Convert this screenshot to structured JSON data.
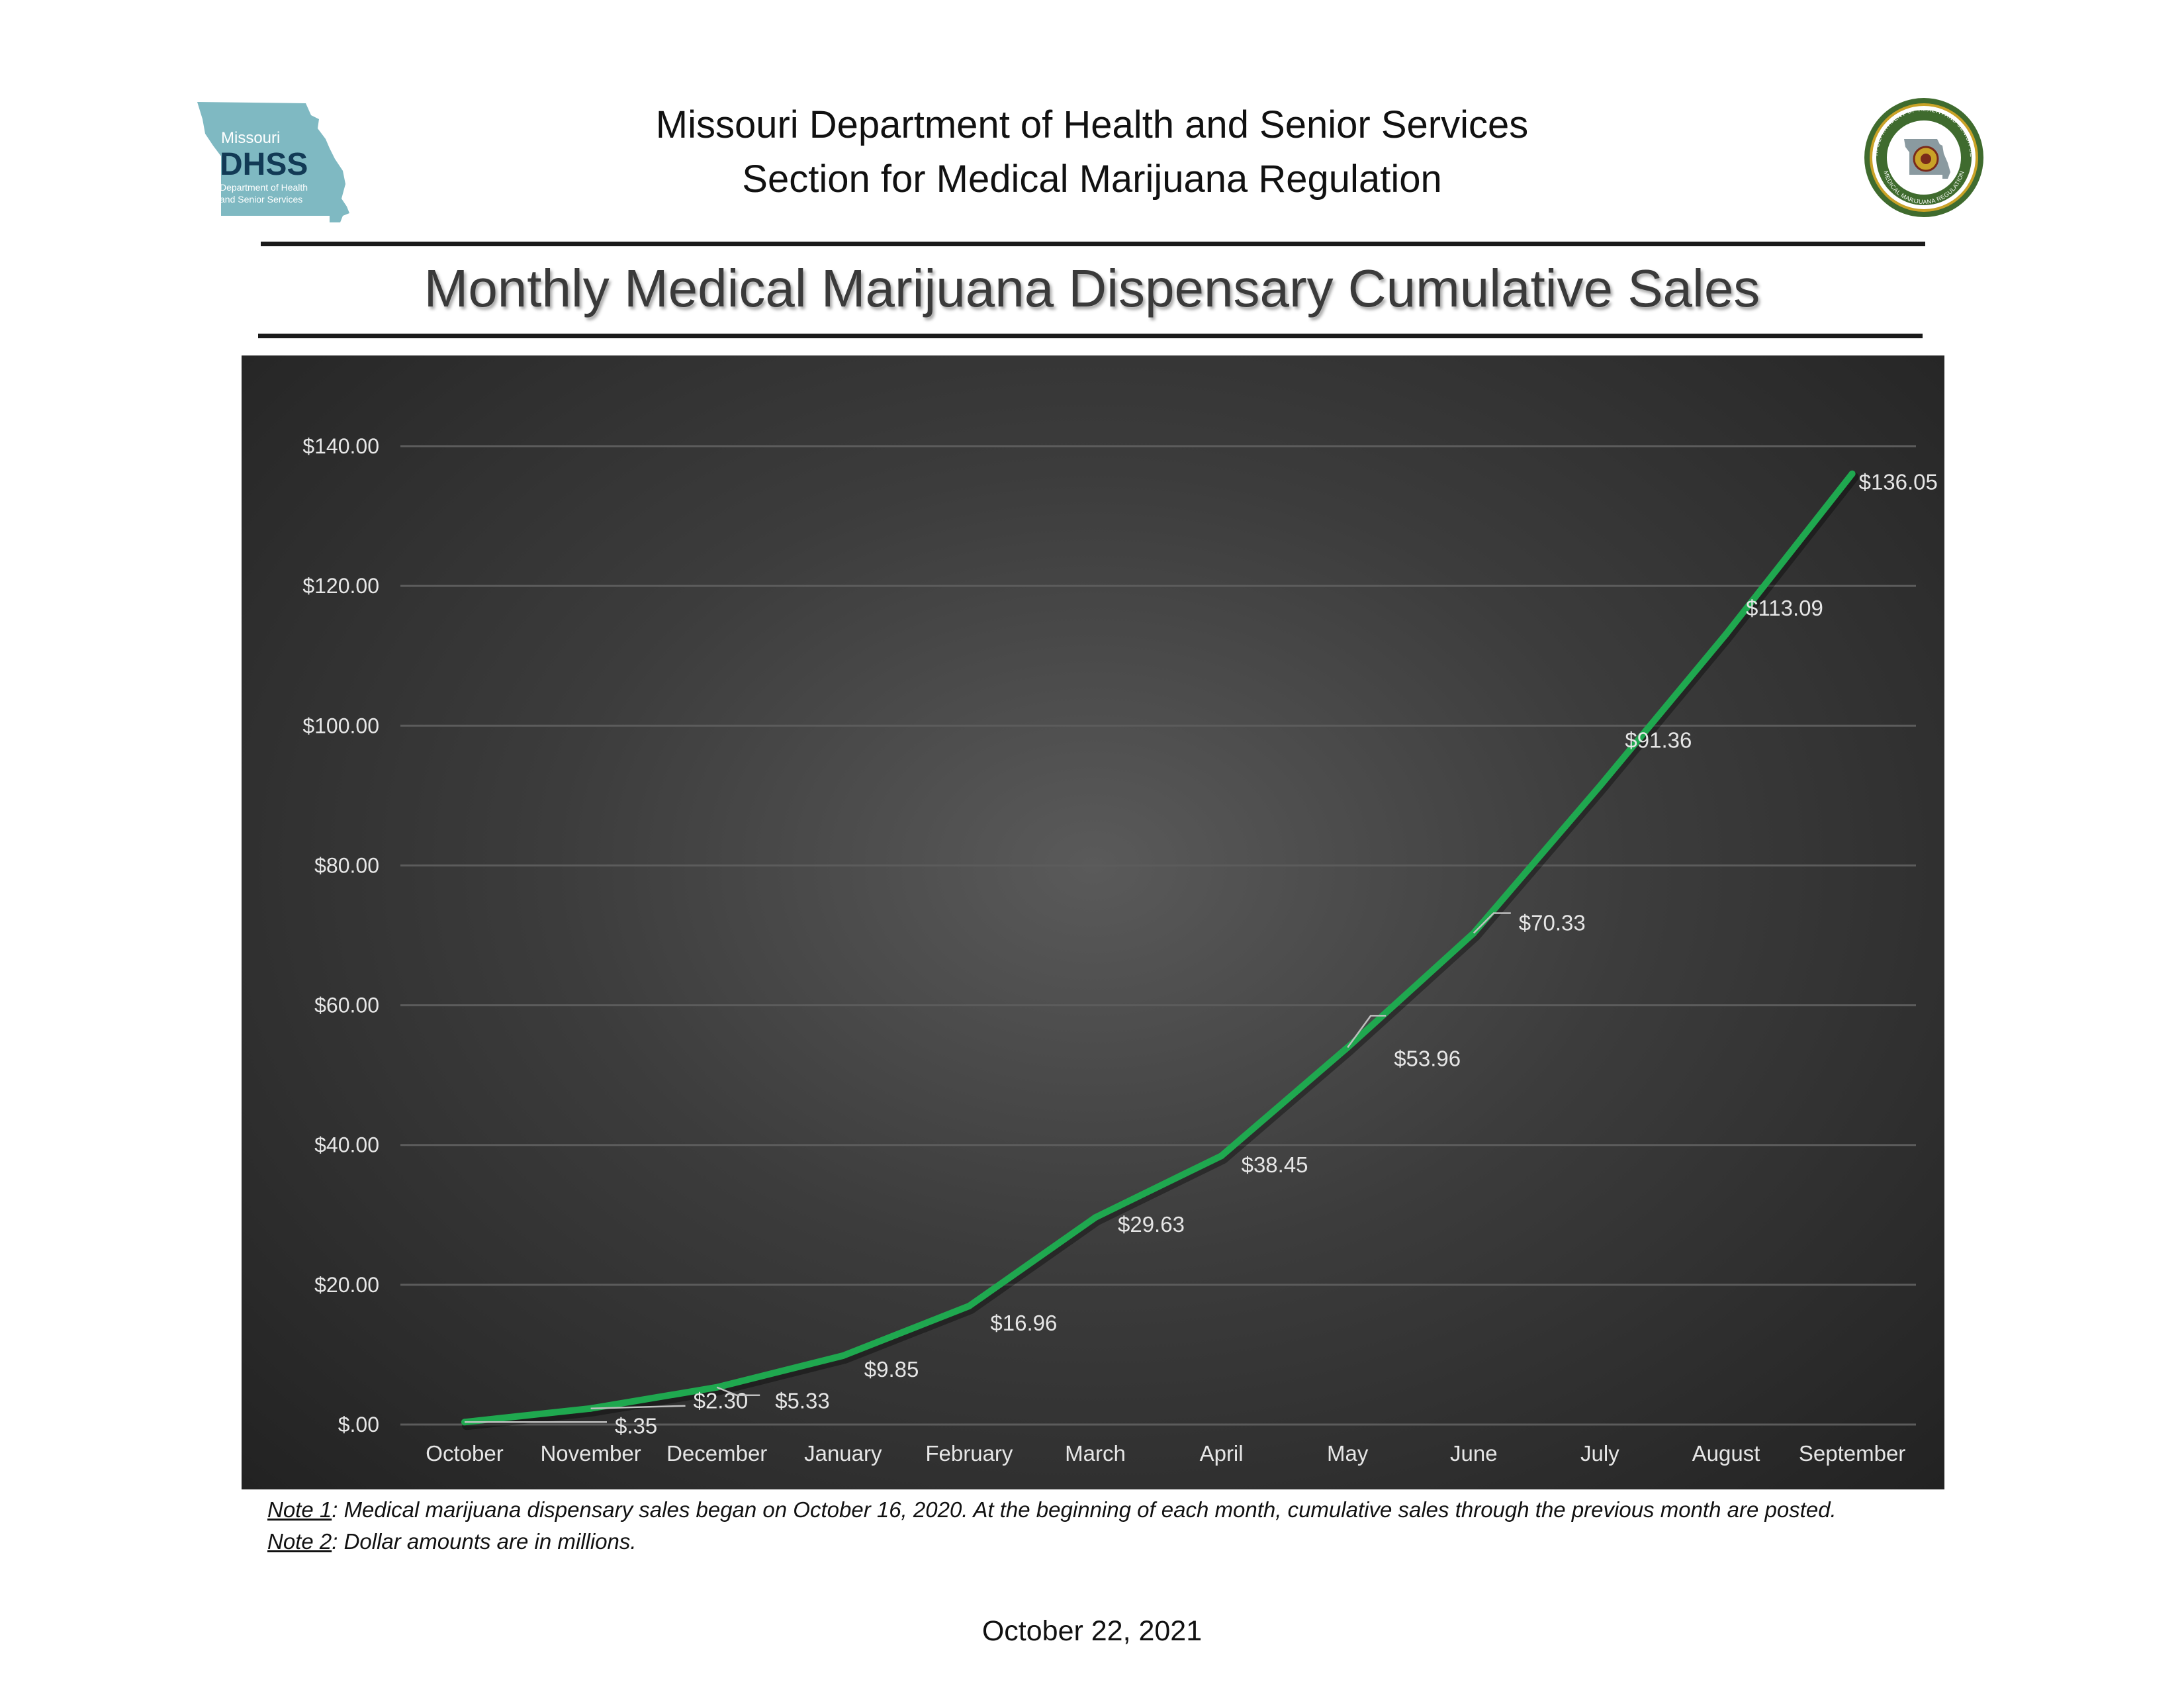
{
  "header": {
    "line1": "Missouri Department of Health and Senior Services",
    "line2": "Section for Medical Marijuana Regulation",
    "logo_left": {
      "state": "Missouri",
      "acronym": "DHSS",
      "subtitle_1": "Department of Health",
      "subtitle_2": "and Senior Services",
      "color": "#7fb9c2"
    },
    "seal": {
      "text_top": "MISSOURI DEPARTMENT OF HEALTH AND SENIOR SERVICES",
      "text_bottom": "MEDICAL MARIJUANA REGULATION",
      "color": "#3f6b2e"
    }
  },
  "title": "Monthly Medical Marijuana Dispensary Cumulative Sales",
  "chart_data": {
    "type": "line",
    "title": "",
    "xlabel": "",
    "ylabel": "",
    "categories": [
      "October",
      "November",
      "December",
      "January",
      "February",
      "March",
      "April",
      "May",
      "June",
      "July",
      "August",
      "September"
    ],
    "series": [
      {
        "values": [
          0.35,
          2.3,
          5.33,
          9.85,
          16.96,
          29.63,
          38.45,
          53.96,
          70.33,
          91.36,
          113.09,
          136.05
        ],
        "labels": [
          "$.35",
          "$2.30",
          "$5.33",
          "$9.85",
          "$16.96",
          "$29.63",
          "$38.45",
          "$53.96",
          "$70.33",
          "$91.36",
          "$113.09",
          "$136.05"
        ],
        "color": "#1fa84f"
      }
    ],
    "ylim": [
      0,
      140
    ],
    "yticks": [
      0,
      20,
      40,
      60,
      80,
      100,
      120,
      140
    ],
    "ytick_labels": [
      "$.00",
      "$20.00",
      "$40.00",
      "$60.00",
      "$80.00",
      "$100.00",
      "$120.00",
      "$140.00"
    ],
    "grid": true,
    "legend": "none",
    "background": "#3c3c3c",
    "text_color": "#e6e6e6"
  },
  "notes": [
    {
      "label": "Note 1",
      "text": ": Medical marijuana dispensary sales began on October 16, 2020. At the beginning of each month, cumulative sales through the previous month are posted."
    },
    {
      "label": "Note 2",
      "text": ": Dollar amounts are in millions."
    }
  ],
  "date": "October 22, 2021"
}
